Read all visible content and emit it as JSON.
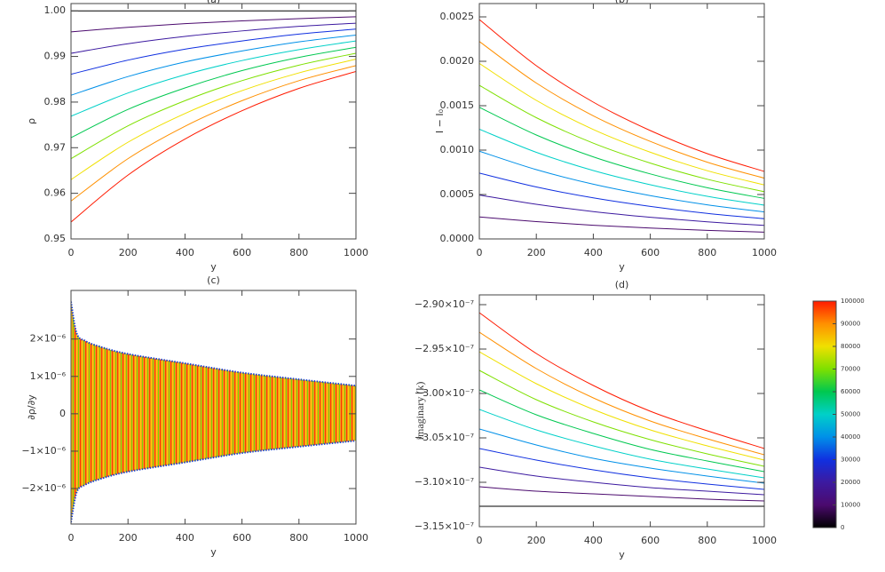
{
  "chart_data": [
    {
      "type": "line",
      "title": "(a)",
      "xlabel": "y",
      "ylabel": "ρ",
      "x": [
        0,
        200,
        400,
        600,
        800,
        1000
      ],
      "xlim": [
        0,
        1000
      ],
      "xticks": [
        0,
        200,
        400,
        600,
        800,
        1000
      ],
      "ylim": [
        0.95,
        1.0016
      ],
      "yticks": [
        0.95,
        0.96,
        0.97,
        0.98,
        0.99,
        {
          "value": 1,
          "label": "1.00"
        }
      ],
      "series": [
        {
          "color": "#000000",
          "values": [
            1,
            1,
            1,
            1,
            1,
            1
          ]
        },
        {
          "color": "#4b0a6e",
          "values": [
            0.9954,
            0.9964,
            0.9972,
            0.9978,
            0.9983,
            0.9987
          ]
        },
        {
          "color": "#3c1aa0",
          "values": [
            0.9907,
            0.9928,
            0.9944,
            0.9956,
            0.9966,
            0.9973
          ]
        },
        {
          "color": "#1030e0",
          "values": [
            0.9861,
            0.9892,
            0.9916,
            0.9934,
            0.9949,
            0.996
          ]
        },
        {
          "color": "#0090e8",
          "values": [
            0.9815,
            0.9856,
            0.9888,
            0.9912,
            0.9932,
            0.9947
          ]
        },
        {
          "color": "#00d0c8",
          "values": [
            0.9769,
            0.982,
            0.986,
            0.9891,
            0.9915,
            0.9934
          ]
        },
        {
          "color": "#00c850",
          "values": [
            0.9722,
            0.9784,
            0.9831,
            0.9869,
            0.9898,
            0.992
          ]
        },
        {
          "color": "#7ee000",
          "values": [
            0.9676,
            0.9748,
            0.9803,
            0.9847,
            0.9881,
            0.9907
          ]
        },
        {
          "color": "#f0e000",
          "values": [
            0.963,
            0.9712,
            0.9775,
            0.9825,
            0.9864,
            0.9894
          ]
        },
        {
          "color": "#ff9000",
          "values": [
            0.9583,
            0.9676,
            0.9747,
            0.9803,
            0.9847,
            0.988
          ]
        },
        {
          "color": "#ff1a00",
          "values": [
            0.9537,
            0.964,
            0.9719,
            0.9781,
            0.983,
            0.9867
          ]
        }
      ]
    },
    {
      "type": "line",
      "title": "(b)",
      "xlabel": "y",
      "ylabel": "I − I₀",
      "x": [
        0,
        200,
        400,
        600,
        800,
        1000
      ],
      "xlim": [
        0,
        1000
      ],
      "xticks": [
        0,
        200,
        400,
        600,
        800,
        1000
      ],
      "ylim": [
        0,
        0.00265
      ],
      "yticks": [
        {
          "value": 0,
          "label": "0.0000"
        },
        0.0005,
        {
          "value": 0.001,
          "label": "0.0010"
        },
        0.0015,
        {
          "value": 0.002,
          "label": "0.0020"
        },
        0.0025
      ],
      "series": [
        {
          "color": "#000000",
          "values": [
            0,
            0,
            0,
            0,
            0,
            0
          ]
        },
        {
          "color": "#4b0a6e",
          "values": [
            0.000247,
            0.000195,
            0.000154,
            0.000122,
            9.6e-05,
            7.6e-05
          ]
        },
        {
          "color": "#3c1aa0",
          "values": [
            0.000494,
            0.00039,
            0.000308,
            0.000244,
            0.000192,
            0.000152
          ]
        },
        {
          "color": "#1030e0",
          "values": [
            0.000741,
            0.000585,
            0.000462,
            0.000366,
            0.000288,
            0.000228
          ]
        },
        {
          "color": "#0090e8",
          "values": [
            0.000988,
            0.00078,
            0.000616,
            0.000488,
            0.000384,
            0.000304
          ]
        },
        {
          "color": "#00d0c8",
          "values": [
            0.001235,
            0.000975,
            0.00077,
            0.00061,
            0.00048,
            0.00038
          ]
        },
        {
          "color": "#00c850",
          "values": [
            0.001482,
            0.00117,
            0.000924,
            0.000732,
            0.000576,
            0.000456
          ]
        },
        {
          "color": "#7ee000",
          "values": [
            0.001729,
            0.001365,
            0.001078,
            0.000854,
            0.000672,
            0.000532
          ]
        },
        {
          "color": "#f0e000",
          "values": [
            0.001976,
            0.00156,
            0.001232,
            0.000976,
            0.000768,
            0.000608
          ]
        },
        {
          "color": "#ff9000",
          "values": [
            0.002223,
            0.001755,
            0.001386,
            0.001098,
            0.000864,
            0.000684
          ]
        },
        {
          "color": "#ff1a00",
          "values": [
            0.00247,
            0.00195,
            0.00154,
            0.00122,
            0.00096,
            0.00076
          ]
        }
      ]
    },
    {
      "type": "area",
      "title": "(c)",
      "xlabel": "y",
      "ylabel": "∂ρ/∂y",
      "x": [
        0,
        20,
        50,
        100,
        200,
        400,
        600,
        800,
        1000
      ],
      "xlim": [
        0,
        1000
      ],
      "xticks": [
        0,
        200,
        400,
        600,
        800,
        1000
      ],
      "ylim": [
        -2.95e-06,
        3.3e-06
      ],
      "yticks": [
        {
          "value": -2e-06,
          "label": "−2×10⁻⁶"
        },
        {
          "value": -1e-06,
          "label": "−1×10⁻⁶"
        },
        0,
        {
          "value": 1e-06,
          "label": "1×10⁻⁶"
        },
        {
          "value": 2e-06,
          "label": "2×10⁻⁶"
        }
      ],
      "series": [
        {
          "color": "#1a40d0",
          "values": [
            3e-06,
            2.15e-06,
            1.95e-06,
            1.8e-06,
            1.6e-06,
            1.35e-06,
            1.1e-06,
            9.2e-07,
            7.5e-07
          ]
        },
        {
          "color": "#1a40d0",
          "values": [
            -2.9e-06,
            -2.1e-06,
            -1.9e-06,
            -1.75e-06,
            -1.55e-06,
            -1.3e-06,
            -1.05e-06,
            -8.8e-07,
            -7.2e-07
          ]
        }
      ]
    },
    {
      "type": "line",
      "title": "(d)",
      "xlabel": "y",
      "ylabel": "imaginary (k)",
      "x": [
        0,
        200,
        400,
        600,
        800,
        1000
      ],
      "xlim": [
        0,
        1000
      ],
      "xticks": [
        0,
        200,
        400,
        600,
        800,
        1000
      ],
      "ylim": [
        -3.15e-07,
        -2.889e-07
      ],
      "yticks": [
        {
          "value": -2.9e-07,
          "label": "−2.90×10⁻⁷"
        },
        {
          "value": -2.95e-07,
          "label": "−2.95×10⁻⁷"
        },
        {
          "value": -3e-07,
          "label": "−3.00×10⁻⁷"
        },
        {
          "value": -3.05e-07,
          "label": "−3.05×10⁻⁷"
        },
        {
          "value": -3.1e-07,
          "label": "−3.10×10⁻⁷"
        },
        {
          "value": -3.15e-07,
          "label": "−3.15×10⁻⁷"
        }
      ],
      "series": [
        {
          "color": "#000000",
          "values": [
            -3.127e-07,
            -3.127e-07,
            -3.127e-07,
            -3.127e-07,
            -3.127e-07,
            -3.127e-07
          ]
        },
        {
          "color": "#4b0a6e",
          "values": [
            -3.105e-07,
            -3.11e-07,
            -3.113e-07,
            -3.116e-07,
            -3.119e-07,
            -3.121e-07
          ]
        },
        {
          "color": "#3c1aa0",
          "values": [
            -3.083e-07,
            -3.093e-07,
            -3.1e-07,
            -3.106e-07,
            -3.11e-07,
            -3.114e-07
          ]
        },
        {
          "color": "#1030e0",
          "values": [
            -3.062e-07,
            -3.075e-07,
            -3.086e-07,
            -3.095e-07,
            -3.102e-07,
            -3.108e-07
          ]
        },
        {
          "color": "#0090e8",
          "values": [
            -3.04e-07,
            -3.058e-07,
            -3.073e-07,
            -3.084e-07,
            -3.093e-07,
            -3.101e-07
          ]
        },
        {
          "color": "#00d0c8",
          "values": [
            -3.018e-07,
            -3.041e-07,
            -3.059e-07,
            -3.074e-07,
            -3.085e-07,
            -3.095e-07
          ]
        },
        {
          "color": "#00c850",
          "values": [
            -2.996e-07,
            -3.024e-07,
            -3.045e-07,
            -3.063e-07,
            -3.076e-07,
            -3.088e-07
          ]
        },
        {
          "color": "#7ee000",
          "values": [
            -2.974e-07,
            -3.007e-07,
            -3.032e-07,
            -3.052e-07,
            -3.068e-07,
            -3.082e-07
          ]
        },
        {
          "color": "#f0e000",
          "values": [
            -2.953e-07,
            -2.989e-07,
            -3.018e-07,
            -3.041e-07,
            -3.059e-07,
            -3.075e-07
          ]
        },
        {
          "color": "#ff9000",
          "values": [
            -2.931e-07,
            -2.972e-07,
            -3.005e-07,
            -3.031e-07,
            -3.051e-07,
            -3.069e-07
          ]
        },
        {
          "color": "#ff1a00",
          "values": [
            -2.909e-07,
            -2.955e-07,
            -2.991e-07,
            -3.02e-07,
            -3.042e-07,
            -3.062e-07
          ]
        }
      ]
    },
    {
      "type": "colorbar",
      "ylim": [
        0,
        100000
      ],
      "yticks": [
        0,
        10000,
        20000,
        30000,
        40000,
        50000,
        60000,
        70000,
        80000,
        90000,
        100000
      ],
      "colors": [
        "#000000",
        "#4b0a6e",
        "#3c1aa0",
        "#1030e0",
        "#0090e8",
        "#00d0c8",
        "#00c850",
        "#7ee000",
        "#f0e000",
        "#ff9000",
        "#ff1a00"
      ]
    }
  ]
}
